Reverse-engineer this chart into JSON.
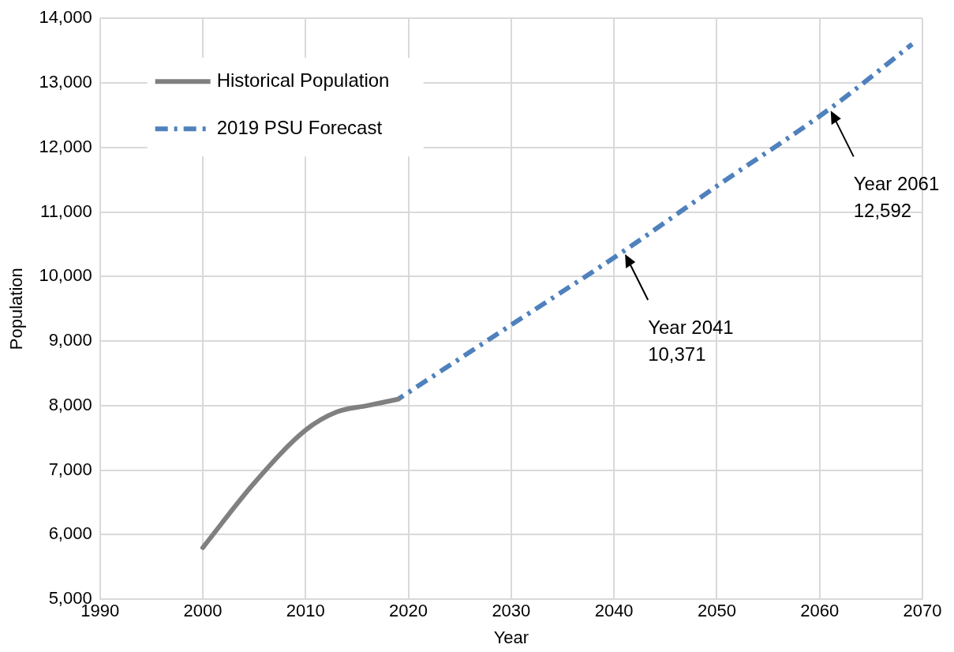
{
  "chart_data": {
    "type": "line",
    "xlabel": "Year",
    "ylabel": "Population",
    "xlim": [
      1990,
      2070
    ],
    "xticks": [
      1990,
      2000,
      2010,
      2020,
      2030,
      2040,
      2050,
      2060,
      2070
    ],
    "ylim": [
      5000,
      14000
    ],
    "yticks": [
      {
        "value": 5000,
        "label": "5,000"
      },
      {
        "value": 6000,
        "label": "6,000"
      },
      {
        "value": 7000,
        "label": "7,000"
      },
      {
        "value": 8000,
        "label": "8,000"
      },
      {
        "value": 9000,
        "label": "9,000"
      },
      {
        "value": 10000,
        "label": "10,000"
      },
      {
        "value": 11000,
        "label": "11,000"
      },
      {
        "value": 12000,
        "label": "12,000"
      },
      {
        "value": 13000,
        "label": "13,000"
      },
      {
        "value": 14000,
        "label": "14,000"
      }
    ],
    "grid": true,
    "legend": "top left",
    "marker": "none",
    "series": [
      {
        "name": "Historical Population",
        "color": "#808080",
        "line_style": "solid",
        "x": [
          2000,
          2005,
          2010,
          2013,
          2016,
          2019
        ],
        "values": [
          5800,
          6800,
          7620,
          7900,
          8000,
          8100
        ]
      },
      {
        "name": "2019 PSU Forecast",
        "color": "#4f81bd",
        "line_style": "dashed",
        "x": [
          2019,
          2030,
          2041,
          2050,
          2061,
          2069
        ],
        "values": [
          8100,
          9250,
          10400,
          11400,
          12600,
          13600
        ]
      }
    ],
    "annotations": [
      {
        "text": "Year 2041\n10,371",
        "x": 2041,
        "y": 10371
      },
      {
        "text": "Year 2061\n12,592",
        "x": 2061,
        "y": 12592
      }
    ]
  }
}
